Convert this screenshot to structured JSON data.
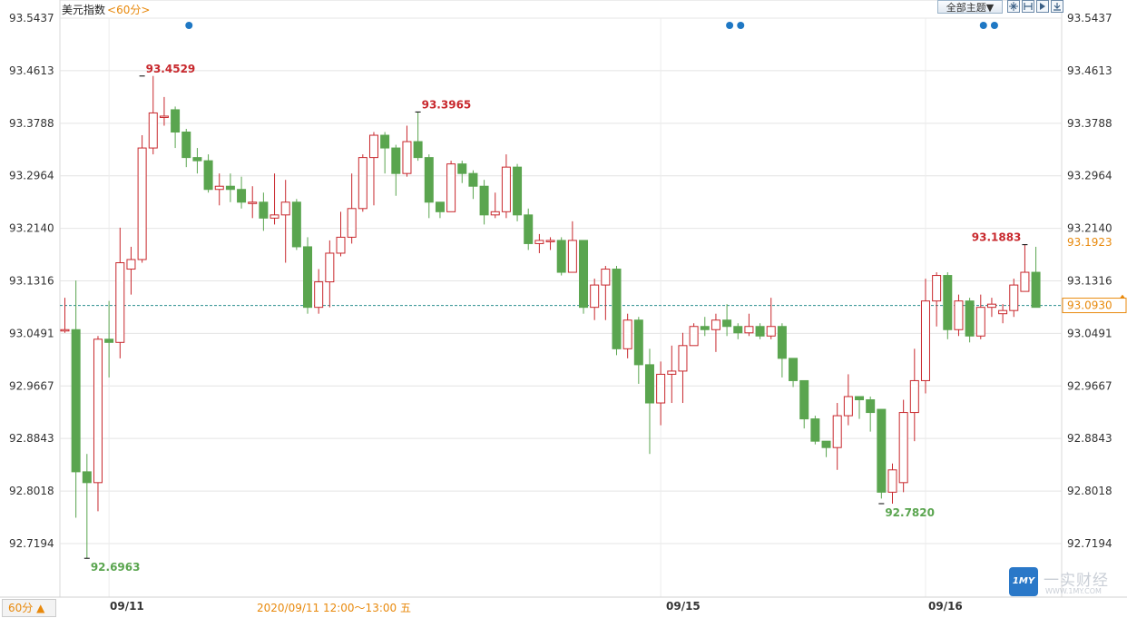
{
  "header": {
    "title": "美元指数",
    "period_label": "<60分>",
    "theme_label": "全部主题▼"
  },
  "toolbar": {
    "icons": [
      "crosshair-icon",
      "range-icon",
      "play-icon",
      "export-icon"
    ]
  },
  "footer": {
    "period_button": "60分 ▲",
    "hover_time": "2020/09/11 12:00～13:00 五",
    "dates": [
      "09/11",
      "09/15",
      "09/16"
    ]
  },
  "watermark": {
    "logo_text": "1MY",
    "name": "一实财经",
    "url": "WWW.1MY.COM"
  },
  "colors": {
    "up": "#c8282d",
    "down": "#5aa54f",
    "grid": "#e4e4e4",
    "price_line": "#2a8f8f",
    "accent": "#e8890c",
    "marker": "#1f78c4"
  },
  "chart_data": {
    "type": "candlestick",
    "title": "美元指数",
    "ylim": [
      92.637,
      93.5437
    ],
    "y_ticks": [
      "93.5437",
      "93.4613",
      "93.3788",
      "93.2964",
      "93.2140",
      "93.1316",
      "93.0491",
      "92.9667",
      "92.8843",
      "92.8018",
      "92.7194"
    ],
    "current_price": "93.0930",
    "last_price_label": "93.1923",
    "annotations": [
      {
        "label": "93.4529",
        "value": 93.4529,
        "index": 7,
        "color": "up"
      },
      {
        "label": "92.6963",
        "value": 92.6963,
        "index": 2,
        "color": "down"
      },
      {
        "label": "93.3965",
        "value": 93.3965,
        "index": 32,
        "color": "up"
      },
      {
        "label": "92.7820",
        "value": 92.782,
        "index": 74,
        "color": "down"
      },
      {
        "label": "93.1883",
        "value": 93.1883,
        "index": 87,
        "color": "up"
      }
    ],
    "event_markers": [
      11,
      60,
      61,
      83,
      84
    ],
    "date_marks": [
      {
        "label": "09/11",
        "index": 4
      },
      {
        "label": "09/15",
        "index": 54
      },
      {
        "label": "09/16",
        "index": 78
      }
    ],
    "candles": [
      [
        93.055,
        93.055,
        93.105,
        93.05
      ],
      [
        93.055,
        92.832,
        93.132,
        92.76
      ],
      [
        92.832,
        92.815,
        92.86,
        92.696
      ],
      [
        92.815,
        93.04,
        93.045,
        92.77
      ],
      [
        93.04,
        93.035,
        93.1,
        92.98
      ],
      [
        93.035,
        93.16,
        93.215,
        93.01
      ],
      [
        93.15,
        93.165,
        93.185,
        93.11
      ],
      [
        93.165,
        93.34,
        93.36,
        93.16
      ],
      [
        93.34,
        93.395,
        93.453,
        93.33
      ],
      [
        93.39,
        93.39,
        93.42,
        93.375
      ],
      [
        93.4,
        93.365,
        93.405,
        93.34
      ],
      [
        93.365,
        93.325,
        93.37,
        93.31
      ],
      [
        93.325,
        93.32,
        93.34,
        93.3
      ],
      [
        93.32,
        93.275,
        93.33,
        93.27
      ],
      [
        93.275,
        93.28,
        93.3,
        93.25
      ],
      [
        93.28,
        93.275,
        93.3,
        93.255
      ],
      [
        93.275,
        93.255,
        93.295,
        93.245
      ],
      [
        93.255,
        93.255,
        93.28,
        93.23
      ],
      [
        93.255,
        93.23,
        93.27,
        93.21
      ],
      [
        93.23,
        93.235,
        93.3,
        93.22
      ],
      [
        93.235,
        93.255,
        93.29,
        93.16
      ],
      [
        93.255,
        93.185,
        93.26,
        93.18
      ],
      [
        93.185,
        93.09,
        93.2,
        93.08
      ],
      [
        93.09,
        93.13,
        93.15,
        93.08
      ],
      [
        93.13,
        93.175,
        93.195,
        93.09
      ],
      [
        93.175,
        93.2,
        93.24,
        93.17
      ],
      [
        93.2,
        93.245,
        93.3,
        93.19
      ],
      [
        93.245,
        93.325,
        93.33,
        93.24
      ],
      [
        93.325,
        93.36,
        93.365,
        93.25
      ],
      [
        93.36,
        93.34,
        93.365,
        93.3
      ],
      [
        93.34,
        93.3,
        93.345,
        93.265
      ],
      [
        93.3,
        93.35,
        93.375,
        93.295
      ],
      [
        93.35,
        93.325,
        93.396,
        93.32
      ],
      [
        93.325,
        93.255,
        93.33,
        93.23
      ],
      [
        93.255,
        93.24,
        93.25,
        93.23
      ],
      [
        93.24,
        93.315,
        93.32,
        93.24
      ],
      [
        93.315,
        93.3,
        93.32,
        93.285
      ],
      [
        93.3,
        93.28,
        93.305,
        93.26
      ],
      [
        93.28,
        93.235,
        93.29,
        93.22
      ],
      [
        93.235,
        93.24,
        93.27,
        93.23
      ],
      [
        93.24,
        93.31,
        93.33,
        93.23
      ],
      [
        93.31,
        93.235,
        93.315,
        93.225
      ],
      [
        93.235,
        93.19,
        93.245,
        93.18
      ],
      [
        93.19,
        93.195,
        93.205,
        93.175
      ],
      [
        93.195,
        93.195,
        93.2,
        93.18
      ],
      [
        93.195,
        93.145,
        93.2,
        93.14
      ],
      [
        93.145,
        93.195,
        93.225,
        93.145
      ],
      [
        93.195,
        93.09,
        93.195,
        93.08
      ],
      [
        93.09,
        93.125,
        93.135,
        93.07
      ],
      [
        93.125,
        93.15,
        93.155,
        93.07
      ],
      [
        93.15,
        93.025,
        93.155,
        93.015
      ],
      [
        93.025,
        93.07,
        93.08,
        93.01
      ],
      [
        93.07,
        93.0,
        93.075,
        92.97
      ],
      [
        93.0,
        92.94,
        93.025,
        92.86
      ],
      [
        92.94,
        92.985,
        93.005,
        92.905
      ],
      [
        92.985,
        92.99,
        93.03,
        92.94
      ],
      [
        92.99,
        93.03,
        93.05,
        92.94
      ],
      [
        93.03,
        93.06,
        93.065,
        93.03
      ],
      [
        93.06,
        93.055,
        93.075,
        93.045
      ],
      [
        93.055,
        93.07,
        93.08,
        93.02
      ],
      [
        93.07,
        93.06,
        93.095,
        93.045
      ],
      [
        93.06,
        93.05,
        93.065,
        93.04
      ],
      [
        93.05,
        93.06,
        93.08,
        93.045
      ],
      [
        93.06,
        93.045,
        93.065,
        93.04
      ],
      [
        93.045,
        93.06,
        93.105,
        93.04
      ],
      [
        93.06,
        93.01,
        93.065,
        92.98
      ],
      [
        93.01,
        92.975,
        93.01,
        92.965
      ],
      [
        92.975,
        92.915,
        92.975,
        92.9
      ],
      [
        92.915,
        92.88,
        92.92,
        92.875
      ],
      [
        92.88,
        92.87,
        92.88,
        92.855
      ],
      [
        92.87,
        92.92,
        92.94,
        92.835
      ],
      [
        92.92,
        92.95,
        92.985,
        92.905
      ],
      [
        92.95,
        92.945,
        92.95,
        92.915
      ],
      [
        92.945,
        92.925,
        92.95,
        92.895
      ],
      [
        92.93,
        92.8,
        92.93,
        92.79
      ],
      [
        92.8,
        92.835,
        92.845,
        92.782
      ],
      [
        92.815,
        92.925,
        92.945,
        92.8
      ],
      [
        92.925,
        92.975,
        93.025,
        92.88
      ],
      [
        92.975,
        93.1,
        93.135,
        92.955
      ],
      [
        93.1,
        93.14,
        93.145,
        93.06
      ],
      [
        93.14,
        93.055,
        93.145,
        93.04
      ],
      [
        93.055,
        93.1,
        93.11,
        93.045
      ],
      [
        93.1,
        93.045,
        93.105,
        93.035
      ],
      [
        93.045,
        93.09,
        93.11,
        93.04
      ],
      [
        93.09,
        93.095,
        93.105,
        93.075
      ],
      [
        93.08,
        93.085,
        93.095,
        93.065
      ],
      [
        93.085,
        93.125,
        93.135,
        93.075
      ],
      [
        93.115,
        93.145,
        93.188,
        93.125
      ],
      [
        93.145,
        93.09,
        93.185,
        93.09
      ]
    ]
  }
}
